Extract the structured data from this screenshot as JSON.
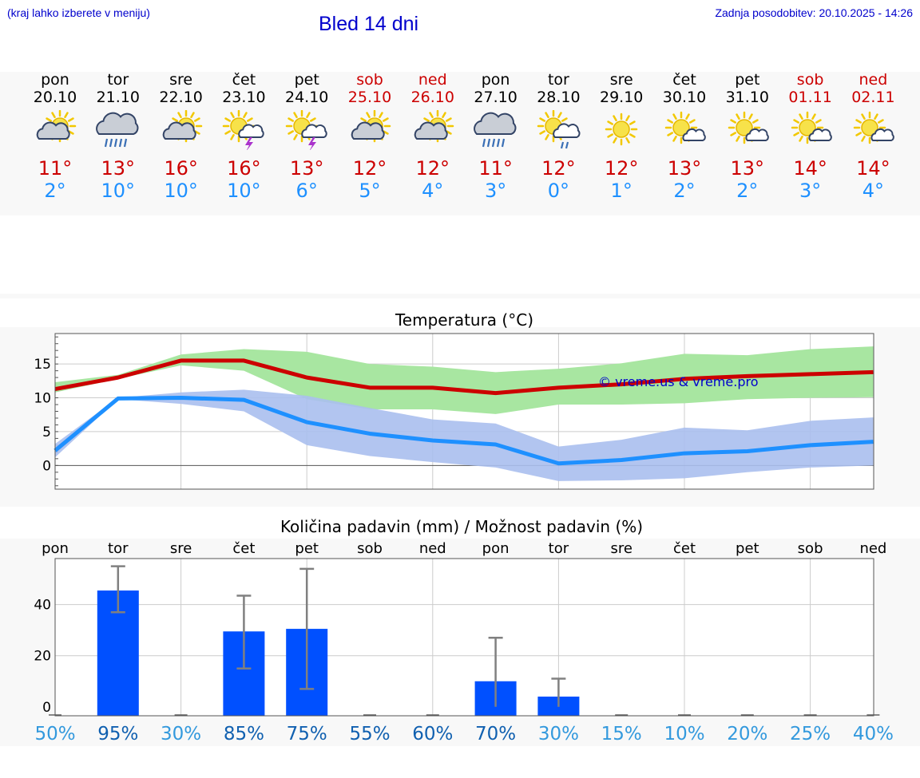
{
  "header": {
    "hint": "(kraj lahko izberete v meniju)",
    "title": "Bled 14 dni",
    "updated": "Zadnja posodobitev: 20.10.2025 - 14:26"
  },
  "days": [
    {
      "name": "pon",
      "date": "20.10",
      "weekend": false,
      "icon": "sun-cloud-icon",
      "max": "11°",
      "min": "2°",
      "precip_chance": "50%"
    },
    {
      "name": "tor",
      "date": "21.10",
      "weekend": false,
      "icon": "rain-cloud-icon",
      "max": "13°",
      "min": "10°",
      "precip_chance": "95%"
    },
    {
      "name": "sre",
      "date": "22.10",
      "weekend": false,
      "icon": "sun-cloud-icon",
      "max": "16°",
      "min": "10°",
      "precip_chance": "30%"
    },
    {
      "name": "čet",
      "date": "23.10",
      "weekend": false,
      "icon": "sun-thunderstorm-icon",
      "max": "16°",
      "min": "10°",
      "precip_chance": "85%"
    },
    {
      "name": "pet",
      "date": "24.10",
      "weekend": false,
      "icon": "sun-thunderstorm-icon",
      "max": "13°",
      "min": "6°",
      "precip_chance": "75%"
    },
    {
      "name": "sob",
      "date": "25.10",
      "weekend": true,
      "icon": "sun-cloud-icon",
      "max": "12°",
      "min": "5°",
      "precip_chance": "55%"
    },
    {
      "name": "ned",
      "date": "26.10",
      "weekend": true,
      "icon": "sun-cloud-icon",
      "max": "12°",
      "min": "4°",
      "precip_chance": "60%"
    },
    {
      "name": "pon",
      "date": "27.10",
      "weekend": false,
      "icon": "rain-cloud-icon",
      "max": "11°",
      "min": "3°",
      "precip_chance": "70%"
    },
    {
      "name": "tor",
      "date": "28.10",
      "weekend": false,
      "icon": "sun-rain-icon",
      "max": "12°",
      "min": "0°",
      "precip_chance": "30%"
    },
    {
      "name": "sre",
      "date": "29.10",
      "weekend": false,
      "icon": "sun-icon",
      "max": "12°",
      "min": "1°",
      "precip_chance": "15%"
    },
    {
      "name": "čet",
      "date": "30.10",
      "weekend": false,
      "icon": "sun-small-cloud-icon",
      "max": "13°",
      "min": "2°",
      "precip_chance": "10%"
    },
    {
      "name": "pet",
      "date": "31.10",
      "weekend": false,
      "icon": "sun-small-cloud-icon",
      "max": "13°",
      "min": "2°",
      "precip_chance": "20%"
    },
    {
      "name": "sob",
      "date": "01.11",
      "weekend": true,
      "icon": "sun-small-cloud-icon",
      "max": "14°",
      "min": "3°",
      "precip_chance": "25%"
    },
    {
      "name": "ned",
      "date": "02.11",
      "weekend": true,
      "icon": "sun-small-cloud-icon",
      "max": "14°",
      "min": "4°",
      "precip_chance": "40%"
    }
  ],
  "colors": {
    "max": "#cc0000",
    "min": "#1e90ff",
    "max_band": "#a8e6a1",
    "min_band": "#aabfee",
    "bar": "#0050ff",
    "chance_low": "#3399dd",
    "chance_high": "#1060b0"
  },
  "chart_data": [
    {
      "type": "line",
      "title": "Temperatura (°C)",
      "x": [
        "pon",
        "tor",
        "sre",
        "čet",
        "pet",
        "sob",
        "ned",
        "pon",
        "tor",
        "sre",
        "čet",
        "pet",
        "sob",
        "ned"
      ],
      "ylim": [
        -3.5,
        19.5
      ],
      "yticks": [
        0,
        5,
        10,
        15
      ],
      "watermark": "© vreme.us & vreme.pro",
      "series": [
        {
          "name": "max",
          "values": [
            11.3,
            13,
            15.5,
            15.5,
            13,
            11.5,
            11.5,
            10.7,
            11.5,
            12,
            12.8,
            13.2,
            13.5,
            13.8
          ],
          "band_low": [
            10.8,
            12.8,
            14.8,
            14,
            9.8,
            8.3,
            8.3,
            7.6,
            9,
            9,
            9.2,
            9.8,
            10,
            10.1
          ],
          "band_high": [
            12.3,
            13.4,
            16.4,
            17.2,
            16.8,
            15,
            14.6,
            13.8,
            14.3,
            15.1,
            16.5,
            16.3,
            17.2,
            17.6
          ]
        },
        {
          "name": "min",
          "values": [
            2.2,
            9.9,
            10,
            9.7,
            6.4,
            4.7,
            3.7,
            3.1,
            0.3,
            0.8,
            1.8,
            2.1,
            3,
            3.5
          ],
          "band_low": [
            1.2,
            9.8,
            9.1,
            8,
            3,
            1.4,
            0.5,
            -0.3,
            -2.3,
            -2.2,
            -1.9,
            -1,
            -0.3,
            0
          ],
          "band_high": [
            3.2,
            10,
            10.8,
            11.2,
            10.3,
            8.5,
            6.8,
            6.2,
            2.8,
            3.8,
            5.6,
            5.2,
            6.6,
            7.1
          ]
        }
      ]
    },
    {
      "type": "bar",
      "title": "Količina padavin (mm) / Možnost padavin (%)",
      "categories": [
        "pon",
        "tor",
        "sre",
        "čet",
        "pet",
        "sob",
        "ned",
        "pon",
        "tor",
        "sre",
        "čet",
        "pet",
        "sob",
        "ned"
      ],
      "values": [
        0,
        45.5,
        0,
        29.5,
        30.5,
        0,
        0,
        10,
        4,
        0,
        0,
        0,
        0,
        0
      ],
      "err_low": [
        0,
        37,
        0,
        15,
        7,
        0,
        0,
        0,
        0,
        0,
        0,
        0,
        0,
        0
      ],
      "err_high": [
        0,
        55,
        0,
        43.5,
        54,
        0,
        0,
        27,
        11,
        0,
        0,
        0,
        0,
        0
      ],
      "ylim": [
        -3.5,
        58
      ],
      "yticks": [
        0,
        20,
        40
      ]
    }
  ]
}
